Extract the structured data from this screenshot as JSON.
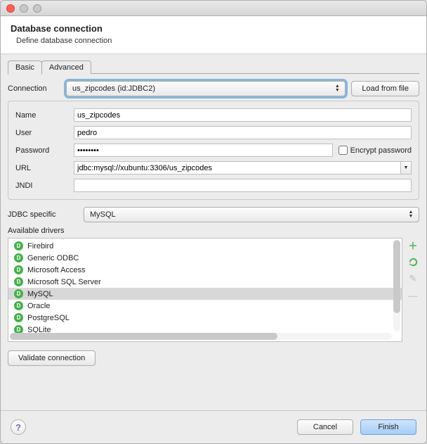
{
  "colors": {
    "traffic_close": "#ff5f57",
    "traffic_min": "#b5b5b5",
    "traffic_max": "#b5b5b5",
    "driver_icon_bg": "#44b04a",
    "focus_ring": "#5e9ed6",
    "add_icon": "#4caf50",
    "refresh_icon": "#4caf50"
  },
  "header": {
    "title": "Database connection",
    "subtitle": "Define database connection"
  },
  "tabs": {
    "basic": "Basic",
    "advanced": "Advanced"
  },
  "labels": {
    "connection": "Connection",
    "load_from_file": "Load from file",
    "name": "Name",
    "user": "User",
    "password": "Password",
    "encrypt_password": "Encrypt password",
    "url": "URL",
    "jndi": "JNDI",
    "jdbc_specific": "JDBC specific",
    "available_drivers": "Available drivers",
    "validate_connection": "Validate connection",
    "cancel": "Cancel",
    "finish": "Finish"
  },
  "values": {
    "connection_selected": "us_zipcodes (id:JDBC2)",
    "name": "us_zipcodes",
    "user": "pedro",
    "password": "••••••••",
    "url": "jdbc:mysql://xubuntu:3306/us_zipcodes",
    "jndi": "",
    "jdbc_specific": "MySQL",
    "encrypt_password_checked": false
  },
  "drivers": [
    {
      "label": "Firebird",
      "selected": false
    },
    {
      "label": "Generic ODBC",
      "selected": false
    },
    {
      "label": "Microsoft Access",
      "selected": false
    },
    {
      "label": "Microsoft SQL Server",
      "selected": false
    },
    {
      "label": "MySQL",
      "selected": true
    },
    {
      "label": "Oracle",
      "selected": false
    },
    {
      "label": "PostgreSQL",
      "selected": false
    },
    {
      "label": "SQLite",
      "selected": false
    }
  ],
  "side_icons": [
    "add",
    "refresh",
    "edit",
    "remove"
  ]
}
